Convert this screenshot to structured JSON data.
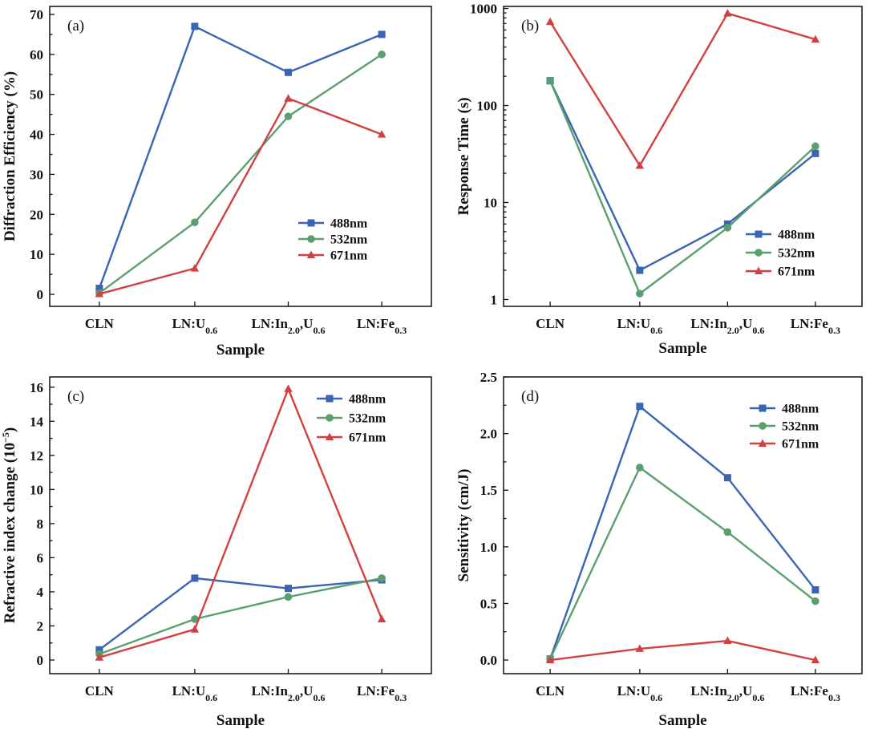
{
  "chart_data": [
    {
      "type": "line",
      "panel_label": "(a)",
      "xlabel": "Sample",
      "ylabel": "Diffraction Efficiency (%)",
      "categories": [
        {
          "base": "CLN",
          "parts": [
            [
              "CLN",
              ""
            ]
          ]
        },
        {
          "base": "LN:U0.6",
          "parts": [
            [
              "LN:U",
              ""
            ],
            [
              "0.6",
              "sub"
            ]
          ]
        },
        {
          "base": "LN:In2.0,U0.6",
          "parts": [
            [
              "LN:In",
              ""
            ],
            [
              "2.0",
              "sub"
            ],
            [
              ",U",
              ""
            ],
            [
              "0.6",
              "sub"
            ]
          ]
        },
        {
          "base": "LN:Fe0.3",
          "parts": [
            [
              "LN:Fe",
              ""
            ],
            [
              "0.3",
              "sub"
            ]
          ]
        }
      ],
      "ylim": [
        -3,
        72
      ],
      "yscale": "linear",
      "yticks": [
        0,
        10,
        20,
        30,
        40,
        50,
        60,
        70
      ],
      "ytick_labels": [
        "0",
        "10",
        "20",
        "30",
        "40",
        "50",
        "60",
        "70"
      ],
      "legend_position": "lower-right",
      "series": [
        {
          "name": "488nm",
          "color": "#3a64b4",
          "marker": "square",
          "values": [
            1.5,
            67,
            55.5,
            65
          ]
        },
        {
          "name": "532nm",
          "color": "#5aa06e",
          "marker": "circle",
          "values": [
            0.3,
            18,
            44.5,
            60
          ]
        },
        {
          "name": "671nm",
          "color": "#d24142",
          "marker": "triangle",
          "values": [
            0.1,
            6.5,
            49,
            40
          ]
        }
      ]
    },
    {
      "type": "line",
      "panel_label": "(b)",
      "xlabel": "Sample",
      "ylabel": "Response Time (s)",
      "categories": [
        {
          "base": "CLN",
          "parts": [
            [
              "CLN",
              ""
            ]
          ]
        },
        {
          "base": "LN:U0.6",
          "parts": [
            [
              "LN:U",
              ""
            ],
            [
              "0.6",
              "sub"
            ]
          ]
        },
        {
          "base": "LN:In2.0,U0.6",
          "parts": [
            [
              "LN:In",
              ""
            ],
            [
              "2.0",
              "sub"
            ],
            [
              ",U",
              ""
            ],
            [
              "0.6",
              "sub"
            ]
          ]
        },
        {
          "base": "LN:Fe0.3",
          "parts": [
            [
              "LN:Fe",
              ""
            ],
            [
              "0.3",
              "sub"
            ]
          ]
        }
      ],
      "ylim": [
        0.85,
        1050
      ],
      "yscale": "log",
      "yticks": [
        1,
        10,
        100,
        1000
      ],
      "ytick_labels": [
        "1",
        "10",
        "100",
        "1000"
      ],
      "legend_position": "lower-right",
      "series": [
        {
          "name": "488nm",
          "color": "#3a64b4",
          "marker": "square",
          "values": [
            180,
            2,
            6,
            32
          ]
        },
        {
          "name": "532nm",
          "color": "#5aa06e",
          "marker": "circle",
          "values": [
            180,
            1.15,
            5.5,
            38
          ]
        },
        {
          "name": "671nm",
          "color": "#d24142",
          "marker": "triangle",
          "values": [
            730,
            24,
            890,
            480
          ]
        }
      ]
    },
    {
      "type": "line",
      "panel_label": "(c)",
      "xlabel": "Sample",
      "ylabel_parts": [
        [
          "Refractive index change (10",
          ""
        ],
        [
          "−5",
          "sup"
        ],
        [
          ")",
          ""
        ]
      ],
      "categories": [
        {
          "base": "CLN",
          "parts": [
            [
              "CLN",
              ""
            ]
          ]
        },
        {
          "base": "LN:U0.6",
          "parts": [
            [
              "LN:U",
              ""
            ],
            [
              "0.6",
              "sub"
            ]
          ]
        },
        {
          "base": "LN:In2.0,U0.6",
          "parts": [
            [
              "LN:In",
              ""
            ],
            [
              "2.0",
              "sub"
            ],
            [
              ",U",
              ""
            ],
            [
              "0.6",
              "sub"
            ]
          ]
        },
        {
          "base": "LN:Fe0.3",
          "parts": [
            [
              "LN:Fe",
              ""
            ],
            [
              "0.3",
              "sub"
            ]
          ]
        }
      ],
      "ylim": [
        -0.8,
        16.6
      ],
      "yscale": "linear",
      "yticks": [
        0,
        2,
        4,
        6,
        8,
        10,
        12,
        14,
        16
      ],
      "ytick_labels": [
        "0",
        "2",
        "4",
        "6",
        "8",
        "10",
        "12",
        "14",
        "16"
      ],
      "legend_position": "top-right",
      "series": [
        {
          "name": "488nm",
          "color": "#3a64b4",
          "marker": "square",
          "values": [
            0.6,
            4.8,
            4.2,
            4.7
          ]
        },
        {
          "name": "532nm",
          "color": "#5aa06e",
          "marker": "circle",
          "values": [
            0.35,
            2.4,
            3.7,
            4.8
          ]
        },
        {
          "name": "671nm",
          "color": "#d24142",
          "marker": "triangle",
          "values": [
            0.15,
            1.8,
            15.9,
            2.4
          ]
        }
      ]
    },
    {
      "type": "line",
      "panel_label": "(d)",
      "xlabel": "Sample",
      "ylabel": "Sensitivity (cm/J)",
      "categories": [
        {
          "base": "CLN",
          "parts": [
            [
              "CLN",
              ""
            ]
          ]
        },
        {
          "base": "LN:U0.6",
          "parts": [
            [
              "LN:U",
              ""
            ],
            [
              "0.6",
              "sub"
            ]
          ]
        },
        {
          "base": "LN:In2.0,U0.6",
          "parts": [
            [
              "LN:In",
              ""
            ],
            [
              "2.0",
              "sub"
            ],
            [
              ",U",
              ""
            ],
            [
              "0.6",
              "sub"
            ]
          ]
        },
        {
          "base": "LN:Fe0.3",
          "parts": [
            [
              "LN:Fe",
              ""
            ],
            [
              "0.3",
              "sub"
            ]
          ]
        }
      ],
      "ylim": [
        -0.12,
        2.5
      ],
      "yscale": "linear",
      "yticks": [
        0.0,
        0.5,
        1.0,
        1.5,
        2.0,
        2.5
      ],
      "ytick_labels": [
        "0.0",
        "0.5",
        "1.0",
        "1.5",
        "2.0",
        "2.5"
      ],
      "legend_position": "top-right",
      "series": [
        {
          "name": "488nm",
          "color": "#3a64b4",
          "marker": "square",
          "values": [
            0.01,
            2.24,
            1.61,
            0.62
          ]
        },
        {
          "name": "532nm",
          "color": "#5aa06e",
          "marker": "circle",
          "values": [
            0.01,
            1.7,
            1.13,
            0.52
          ]
        },
        {
          "name": "671nm",
          "color": "#d24142",
          "marker": "triangle",
          "values": [
            0.0,
            0.1,
            0.17,
            0.0
          ]
        }
      ]
    }
  ]
}
